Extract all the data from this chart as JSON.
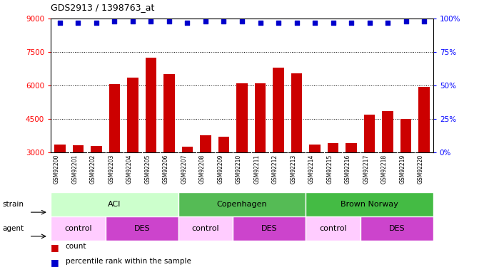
{
  "title": "GDS2913 / 1398763_at",
  "samples": [
    "GSM92200",
    "GSM92201",
    "GSM92202",
    "GSM92203",
    "GSM92204",
    "GSM92205",
    "GSM92206",
    "GSM92207",
    "GSM92208",
    "GSM92209",
    "GSM92210",
    "GSM92211",
    "GSM92212",
    "GSM92213",
    "GSM92214",
    "GSM92215",
    "GSM92216",
    "GSM92217",
    "GSM92218",
    "GSM92219",
    "GSM92220"
  ],
  "counts": [
    3350,
    3300,
    3280,
    6050,
    6350,
    7250,
    6500,
    3250,
    3750,
    3700,
    6100,
    6100,
    6800,
    6550,
    3350,
    3400,
    3400,
    4700,
    4850,
    4500,
    5950
  ],
  "percentile_rank": [
    97,
    97,
    97,
    98,
    98,
    98,
    98,
    97,
    98,
    98,
    98,
    97,
    97,
    97,
    97,
    97,
    97,
    97,
    97,
    98,
    98
  ],
  "bar_color": "#cc0000",
  "dot_color": "#0000cc",
  "ylim_left": [
    3000,
    9000
  ],
  "ylim_right": [
    0,
    100
  ],
  "yticks_left": [
    3000,
    4500,
    6000,
    7500,
    9000
  ],
  "yticks_right": [
    0,
    25,
    50,
    75,
    100
  ],
  "strain_groups": [
    {
      "label": "ACI",
      "start": 0,
      "end": 7,
      "color": "#ccffcc"
    },
    {
      "label": "Copenhagen",
      "start": 7,
      "end": 14,
      "color": "#55bb55"
    },
    {
      "label": "Brown Norway",
      "start": 14,
      "end": 21,
      "color": "#44bb44"
    }
  ],
  "agent_groups": [
    {
      "label": "control",
      "start": 0,
      "end": 3,
      "color": "#ffccff"
    },
    {
      "label": "DES",
      "start": 3,
      "end": 7,
      "color": "#cc44cc"
    },
    {
      "label": "control",
      "start": 7,
      "end": 10,
      "color": "#ffccff"
    },
    {
      "label": "DES",
      "start": 10,
      "end": 14,
      "color": "#cc44cc"
    },
    {
      "label": "control",
      "start": 14,
      "end": 17,
      "color": "#ffccff"
    },
    {
      "label": "DES",
      "start": 17,
      "end": 21,
      "color": "#cc44cc"
    }
  ],
  "legend_count_color": "#cc0000",
  "legend_dot_color": "#0000cc",
  "background_color": "#ffffff",
  "label_bg_color": "#cccccc",
  "strain_label": "strain",
  "agent_label": "agent"
}
